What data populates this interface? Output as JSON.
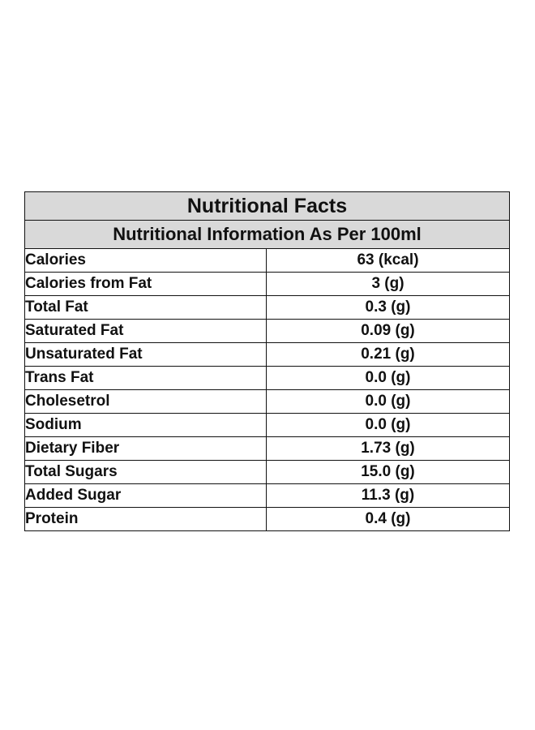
{
  "table": {
    "title": "Nutritional Facts",
    "subtitle": "Nutritional Information As Per 100ml",
    "rows": [
      {
        "name": "Calories",
        "value": "63 (kcal)"
      },
      {
        "name": "Calories from Fat",
        "value": "3 (g)"
      },
      {
        "name": "Total Fat",
        "value": "0.3 (g)"
      },
      {
        "name": "Saturated Fat",
        "value": "0.09 (g)"
      },
      {
        "name": "Unsaturated Fat",
        "value": "0.21 (g)"
      },
      {
        "name": "Trans Fat",
        "value": "0.0 (g)"
      },
      {
        "name": "Cholesetrol",
        "value": "0.0 (g)"
      },
      {
        "name": "Sodium",
        "value": "0.0 (g)"
      },
      {
        "name": "Dietary Fiber",
        "value": "1.73 (g)"
      },
      {
        "name": "Total Sugars",
        "value": "15.0 (g)"
      },
      {
        "name": "Added Sugar",
        "value": "11.3 (g)"
      },
      {
        "name": "Protein",
        "value": "0.4 (g)"
      }
    ]
  },
  "colors": {
    "header_background": "#d9d9d9",
    "border": "#111111",
    "text": "#111111"
  }
}
